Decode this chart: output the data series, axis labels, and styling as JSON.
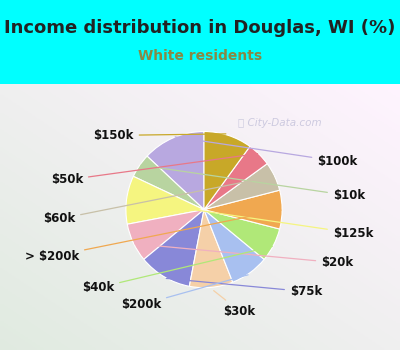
{
  "title": "Income distribution in Douglas, WI (%)",
  "subtitle": "White residents",
  "background_cyan": "#00FFFF",
  "background_chart_top": "#e8f8f0",
  "background_chart_bottom": "#d8f0e0",
  "labels": [
    "$100k",
    "$10k",
    "$125k",
    "$20k",
    "$75k",
    "$30k",
    "$200k",
    "$40k",
    "> $200k",
    "$60k",
    "$50k",
    "$150k"
  ],
  "sizes": [
    13,
    5,
    10,
    8,
    11,
    9,
    8,
    7,
    8,
    6,
    5,
    10
  ],
  "colors": [
    "#b8a8e0",
    "#b8d4a0",
    "#f5f580",
    "#f0b0c0",
    "#8888d8",
    "#f5d0a8",
    "#a8c0f0",
    "#b0e878",
    "#f0a850",
    "#c8c0a8",
    "#e87888",
    "#c8a828"
  ],
  "title_fontsize": 13,
  "subtitle_fontsize": 10,
  "label_fontsize": 8.5,
  "subtitle_color": "#888844",
  "watermark_color": "#aaaacc"
}
